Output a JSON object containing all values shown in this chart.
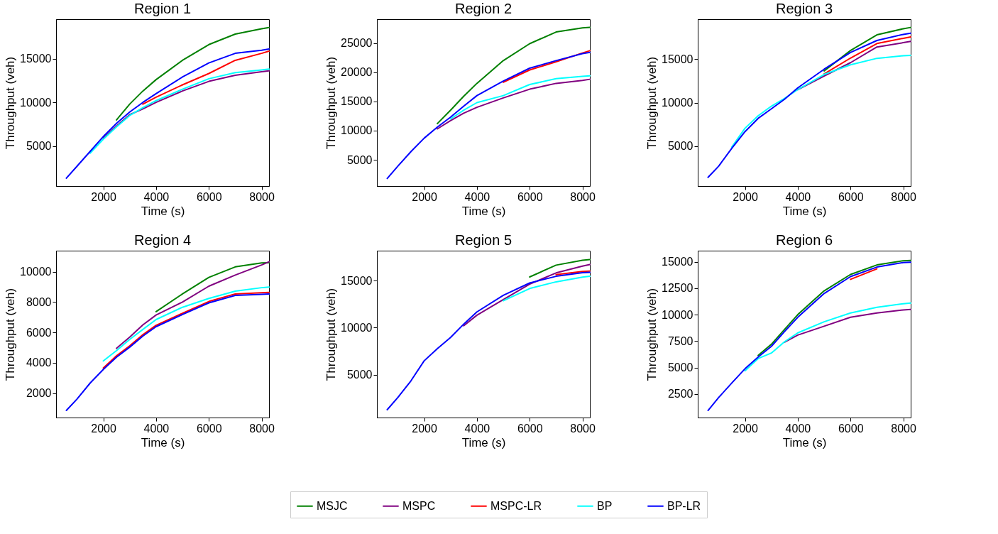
{
  "chart_data": [
    {
      "type": "line",
      "title": "Region 1",
      "xlabel": "Time (s)",
      "ylabel": "Throughput (veh)",
      "x": [
        600,
        1000,
        1500,
        2000,
        2500,
        3000,
        3500,
        4000,
        5000,
        6000,
        7000,
        8000,
        8280
      ],
      "xlim": [
        210,
        8280
      ],
      "xticks": [
        2000,
        4000,
        6000,
        8000
      ],
      "ylim": [
        450,
        19500
      ],
      "yticks": [
        5000,
        10000,
        15000
      ],
      "legend": "bottom",
      "series": [
        {
          "name": "MSJC",
          "color": "#008000",
          "values": [
            null,
            null,
            null,
            null,
            8000,
            9800,
            11300,
            12600,
            14800,
            16600,
            17800,
            18400,
            18550
          ]
        },
        {
          "name": "MSPC",
          "color": "#800080",
          "values": [
            null,
            null,
            null,
            5900,
            7300,
            8600,
            9250,
            10000,
            11300,
            12400,
            13100,
            13500,
            13600
          ]
        },
        {
          "name": "MSPC-LR",
          "color": "#ff0000",
          "values": [
            null,
            null,
            null,
            null,
            null,
            null,
            9800,
            10600,
            12000,
            13300,
            14800,
            15600,
            15850
          ]
        },
        {
          "name": "BP",
          "color": "#00ffff",
          "values": [
            null,
            null,
            4200,
            5800,
            7200,
            8500,
            9400,
            10200,
            11500,
            12700,
            13400,
            13700,
            13800
          ]
        },
        {
          "name": "BP-LR",
          "color": "#0000ff",
          "values": [
            1350,
            2700,
            4400,
            6100,
            7600,
            8900,
            10000,
            11000,
            12900,
            14500,
            15600,
            15950,
            16100
          ]
        }
      ]
    },
    {
      "type": "line",
      "title": "Region 2",
      "xlabel": "Time (s)",
      "ylabel": "Throughput (veh)",
      "x": [
        600,
        1000,
        1500,
        2000,
        2500,
        3000,
        3500,
        4000,
        5000,
        6000,
        7000,
        8000,
        8280
      ],
      "xlim": [
        210,
        8280
      ],
      "xticks": [
        2000,
        4000,
        6000,
        8000
      ],
      "ylim": [
        500,
        29100
      ],
      "yticks": [
        5000,
        10000,
        15000,
        20000,
        25000
      ],
      "series": [
        {
          "color": "#008000",
          "values": [
            null,
            null,
            null,
            null,
            11200,
            13500,
            15900,
            18100,
            22000,
            24900,
            26900,
            27600,
            27700
          ]
        },
        {
          "color": "#800080",
          "values": [
            null,
            null,
            null,
            null,
            10300,
            11700,
            13000,
            14000,
            15600,
            17100,
            18100,
            18600,
            18800
          ]
        },
        {
          "color": "#ff0000",
          "values": [
            null,
            null,
            null,
            null,
            null,
            null,
            null,
            null,
            18300,
            20400,
            21800,
            23300,
            23700
          ]
        },
        {
          "color": "#00ffff",
          "values": [
            null,
            null,
            null,
            null,
            null,
            12000,
            13500,
            14800,
            16000,
            17900,
            18900,
            19300,
            19400
          ]
        },
        {
          "color": "#0000ff",
          "values": [
            1800,
            3900,
            6400,
            8700,
            10600,
            12300,
            14200,
            16000,
            18500,
            20700,
            22000,
            23200,
            23400
          ]
        }
      ]
    },
    {
      "type": "line",
      "title": "Region 3",
      "xlabel": "Time (s)",
      "ylabel": "Throughput (veh)",
      "x": [
        600,
        1000,
        1500,
        2000,
        2500,
        3000,
        3500,
        4000,
        5000,
        6000,
        7000,
        8000,
        8280
      ],
      "xlim": [
        210,
        8280
      ],
      "xticks": [
        2000,
        4000,
        6000,
        8000
      ],
      "ylim": [
        420,
        19600
      ],
      "yticks": [
        5000,
        10000,
        15000
      ],
      "series": [
        {
          "color": "#008000",
          "values": [
            null,
            null,
            null,
            null,
            null,
            null,
            null,
            null,
            13650,
            16000,
            17800,
            18500,
            18650
          ]
        },
        {
          "color": "#800080",
          "values": [
            null,
            null,
            null,
            null,
            null,
            null,
            null,
            11500,
            13070,
            14600,
            16400,
            16900,
            17050
          ]
        },
        {
          "color": "#ff0000",
          "values": [
            null,
            null,
            null,
            null,
            null,
            null,
            null,
            null,
            13300,
            15130,
            16800,
            17400,
            17560
          ]
        },
        {
          "color": "#00ffff",
          "values": [
            null,
            null,
            4900,
            7060,
            8500,
            9600,
            10500,
            11500,
            13250,
            14360,
            15100,
            15400,
            15440
          ]
        },
        {
          "color": "#0000ff",
          "values": [
            1420,
            2700,
            4750,
            6670,
            8200,
            9300,
            10400,
            11700,
            13850,
            15770,
            17150,
            17850,
            17990
          ]
        }
      ]
    },
    {
      "type": "line",
      "title": "Region 4",
      "xlabel": "Time (s)",
      "ylabel": "Throughput (veh)",
      "x": [
        600,
        1000,
        1500,
        2000,
        2500,
        3000,
        3500,
        4000,
        5000,
        6000,
        7000,
        8000,
        8280
      ],
      "xlim": [
        210,
        8280
      ],
      "xticks": [
        2000,
        4000,
        6000,
        8000
      ],
      "ylim": [
        390,
        11390
      ],
      "yticks": [
        2000,
        4000,
        6000,
        8000,
        10000
      ],
      "series": [
        {
          "color": "#008000",
          "values": [
            null,
            null,
            null,
            null,
            null,
            null,
            null,
            7370,
            8540,
            9630,
            10320,
            10580,
            10600
          ]
        },
        {
          "color": "#800080",
          "values": [
            null,
            null,
            null,
            null,
            4950,
            5690,
            6500,
            7150,
            8000,
            9050,
            9780,
            10450,
            10660
          ]
        },
        {
          "color": "#ff0000",
          "values": [
            null,
            null,
            null,
            3650,
            4460,
            5120,
            5850,
            6470,
            7260,
            8040,
            8540,
            8620,
            8640
          ]
        },
        {
          "color": "#00ffff",
          "values": [
            null,
            null,
            null,
            4120,
            4800,
            5540,
            6200,
            6850,
            7660,
            8240,
            8720,
            8950,
            8990
          ]
        },
        {
          "color": "#0000ff",
          "values": [
            860,
            1600,
            2660,
            3560,
            4370,
            5030,
            5760,
            6380,
            7180,
            7950,
            8440,
            8510,
            8530
          ]
        }
      ]
    },
    {
      "type": "line",
      "title": "Region 5",
      "xlabel": "Time (s)",
      "ylabel": "Throughput (veh)",
      "x": [
        600,
        1000,
        1500,
        2000,
        2500,
        3000,
        3500,
        4000,
        5000,
        6000,
        7000,
        8000,
        8280
      ],
      "xlim": [
        210,
        8280
      ],
      "xticks": [
        2000,
        4000,
        6000,
        8000
      ],
      "ylim": [
        430,
        18200
      ],
      "yticks": [
        5000,
        10000,
        15000
      ],
      "series": [
        {
          "color": "#008000",
          "values": [
            null,
            null,
            null,
            null,
            null,
            null,
            null,
            null,
            null,
            15400,
            16660,
            17180,
            17250
          ]
        },
        {
          "color": "#800080",
          "values": [
            null,
            null,
            null,
            null,
            null,
            null,
            10200,
            11330,
            12990,
            14640,
            15830,
            16550,
            16730
          ]
        },
        {
          "color": "#ff0000",
          "values": [
            null,
            null,
            null,
            null,
            null,
            null,
            null,
            null,
            null,
            null,
            15640,
            15980,
            16020
          ]
        },
        {
          "color": "#00ffff",
          "values": [
            null,
            null,
            null,
            null,
            null,
            null,
            null,
            null,
            12870,
            14170,
            14880,
            15380,
            15470
          ]
        },
        {
          "color": "#0000ff",
          "values": [
            1260,
            2560,
            4340,
            6470,
            7770,
            8960,
            10380,
            11680,
            13450,
            14760,
            15470,
            15850,
            15900
          ]
        }
      ]
    },
    {
      "type": "line",
      "title": "Region 6",
      "xlabel": "Time (s)",
      "ylabel": "Throughput (veh)",
      "x": [
        600,
        1000,
        1500,
        2000,
        2500,
        3000,
        3500,
        4000,
        5000,
        6000,
        7000,
        8000,
        8280
      ],
      "xlim": [
        210,
        8280
      ],
      "xticks": [
        2000,
        4000,
        6000,
        8000
      ],
      "ylim": [
        270,
        16050
      ],
      "yticks": [
        2500,
        5000,
        7500,
        10000,
        12500,
        15000
      ],
      "series": [
        {
          "color": "#008000",
          "values": [
            null,
            null,
            null,
            null,
            6150,
            7200,
            8600,
            10000,
            12250,
            13800,
            14700,
            15100,
            15120
          ]
        },
        {
          "color": "#800080",
          "values": [
            null,
            null,
            null,
            null,
            null,
            null,
            7400,
            8070,
            8910,
            9750,
            10160,
            10450,
            10500
          ]
        },
        {
          "color": "#ff0000",
          "values": [
            null,
            null,
            null,
            null,
            null,
            null,
            null,
            null,
            null,
            13340,
            14330,
            null,
            null
          ]
        },
        {
          "color": "#00ffff",
          "values": [
            null,
            null,
            null,
            4690,
            5850,
            6370,
            7440,
            8280,
            9330,
            10160,
            10690,
            11030,
            11090
          ]
        },
        {
          "color": "#0000ff",
          "values": [
            940,
            2160,
            3530,
            4880,
            6000,
            7000,
            8400,
            9750,
            12000,
            13600,
            14500,
            14930,
            14960
          ]
        }
      ]
    }
  ]
}
